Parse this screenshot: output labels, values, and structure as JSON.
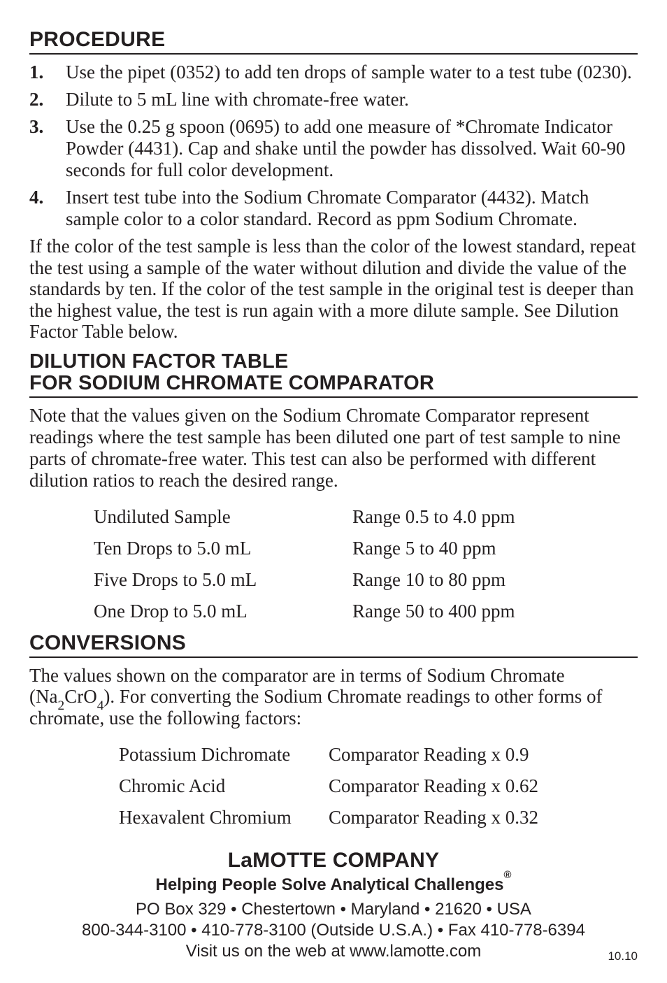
{
  "procedure": {
    "heading": "PROCEDURE",
    "steps": [
      "Use the pipet (0352) to add ten drops of sample water to a test tube (0230).",
      "Dilute to 5 mL line with chromate-free water.",
      "Use the 0.25 g spoon (0695) to add one measure of *Chromate Indicator Powder (4431). Cap and shake until the powder has dissolved. Wait 60-90 seconds for full color development.",
      "Insert test tube into the Sodium Chromate Comparator (4432). Match sample color to a color standard. Record as ppm Sodium Chromate."
    ],
    "after": "If the color of the test sample is less than the color of the lowest standard, repeat the test using a sample of the water without dilution and divide the value of the standards by ten. If the color of the test sample in the original test is deeper than the highest value, the test is run again with a more dilute sample. See Dilution Factor Table below."
  },
  "dilution": {
    "heading_line1": "DILUTION FACTOR TABLE",
    "heading_line2": "FOR SODIUM CHROMATE COMPARATOR",
    "note": "Note that the values given on the Sodium Chromate Comparator represent readings where the test sample has been diluted one part of test sample to nine parts of chromate-free water.  This test can also be performed with different dilution ratios to reach the desired range.",
    "rows": [
      {
        "sample": "Undiluted Sample",
        "range": "Range 0.5 to 4.0 ppm"
      },
      {
        "sample": "Ten Drops to 5.0 mL",
        "range": "Range 5 to 40 ppm"
      },
      {
        "sample": "Five Drops to 5.0 mL",
        "range": "Range 10 to 80 ppm"
      },
      {
        "sample": "One Drop to 5.0 mL",
        "range": "Range 50 to 400 ppm"
      }
    ]
  },
  "conversions": {
    "heading": "CONVERSIONS",
    "body_pre": "The values shown on the comparator are in terms of Sodium Chromate (Na",
    "body_mid": "CrO",
    "body_post": "). For converting the Sodium Chromate readings to other forms of chromate, use the following factors:",
    "rows": [
      {
        "name": "Potassium Dichromate",
        "factor": "Comparator Reading x 0.9"
      },
      {
        "name": "Chromic Acid",
        "factor": "Comparator Reading x 0.62"
      },
      {
        "name": "Hexavalent Chromium",
        "factor": "Comparator Reading x 0.32"
      }
    ]
  },
  "footer": {
    "company": "LaMOTTE COMPANY",
    "tagline": "Helping People Solve Analytical Challenges",
    "addr1": "PO Box 329 • Chestertown • Maryland • 21620 • USA",
    "addr2": "800-344-3100 • 410-778-3100 (Outside U.S.A.) • Fax 410-778-6394",
    "addr3": "Visit us on the web at www.lamotte.com",
    "version": "10.10"
  }
}
